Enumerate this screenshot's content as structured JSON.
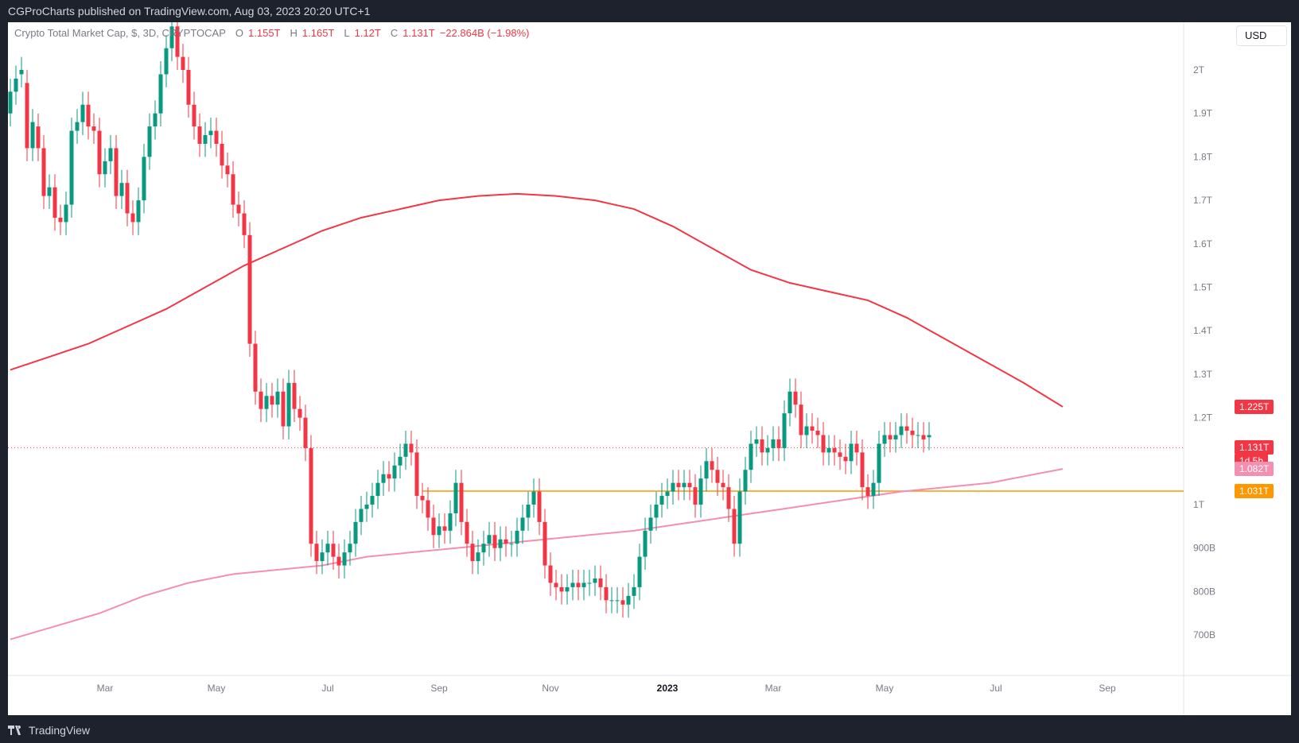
{
  "header": {
    "publisher_text": "CGProCharts published on TradingView.com, Aug 03, 2023 20:20 UTC+1"
  },
  "footer": {
    "brand": "TradingView"
  },
  "legend": {
    "symbol": "Crypto Total Market Cap, $, 3D, CRYPTOCAP",
    "o_label": "O",
    "o_value": "1.155T",
    "h_label": "H",
    "h_value": "1.165T",
    "l_label": "L",
    "l_value": "1.12T",
    "c_label": "C",
    "c_value": "1.131T",
    "change": "−22.864B (−1.98%)"
  },
  "currency_button": "USD",
  "price_tags": [
    {
      "name": "ma-fast-tag",
      "text": "1.225T",
      "value": 1.225,
      "color": "#f23645"
    },
    {
      "name": "last-price-tag",
      "text": "1.131T",
      "value": 1.131,
      "color": "#f23645",
      "subtext": "1d 5h"
    },
    {
      "name": "ma-slow-tag",
      "text": "1.082T",
      "value": 1.082,
      "color": "#f48fb1"
    },
    {
      "name": "horizontal-level-tag",
      "text": "1.031T",
      "value": 1.031,
      "color": "#ff9800"
    }
  ],
  "colors": {
    "up": "#089981",
    "down": "#f23645",
    "ma_fast": "#f23645",
    "ma_slow": "#f48fb1",
    "level": "#ff9800",
    "grid_text": "#787b86",
    "last_price_line": "#f23645"
  },
  "chart_data": {
    "type": "candlestick",
    "title": "Crypto Total Market Cap, $, 3D, CRYPTOCAP",
    "y_scale": "linear",
    "ylim": [
      0.65,
      2.1
    ],
    "y_ticks": [
      {
        "value": 2.0,
        "label": "2T"
      },
      {
        "value": 1.9,
        "label": "1.9T"
      },
      {
        "value": 1.8,
        "label": "1.8T"
      },
      {
        "value": 1.7,
        "label": "1.7T"
      },
      {
        "value": 1.6,
        "label": "1.6T"
      },
      {
        "value": 1.5,
        "label": "1.5T"
      },
      {
        "value": 1.4,
        "label": "1.4T"
      },
      {
        "value": 1.3,
        "label": "1.3T"
      },
      {
        "value": 1.2,
        "label": "1.2T"
      },
      {
        "value": 1.0,
        "label": "1T"
      },
      {
        "value": 0.9,
        "label": "900B"
      },
      {
        "value": 0.8,
        "label": "800B"
      },
      {
        "value": 0.7,
        "label": "700B"
      }
    ],
    "x_ticks": [
      "Mar",
      "May",
      "Jul",
      "Sep",
      "Nov",
      "2023",
      "Mar",
      "May",
      "Jul",
      "Sep"
    ],
    "x_tick_index": [
      17,
      37,
      57,
      77,
      97,
      118,
      137,
      157,
      177,
      197
    ],
    "candles_close": [
      1.95,
      1.98,
      2.0,
      1.82,
      1.88,
      1.82,
      1.71,
      1.73,
      1.66,
      1.65,
      1.69,
      1.86,
      1.88,
      1.92,
      1.87,
      1.86,
      1.76,
      1.79,
      1.82,
      1.71,
      1.74,
      1.67,
      1.65,
      1.7,
      1.8,
      1.87,
      1.9,
      1.99,
      2.05,
      2.1,
      2.03,
      2.0,
      1.92,
      1.87,
      1.83,
      1.85,
      1.86,
      1.83,
      1.78,
      1.76,
      1.69,
      1.67,
      1.62,
      1.37,
      1.26,
      1.22,
      1.25,
      1.23,
      1.26,
      1.18,
      1.28,
      1.22,
      1.2,
      1.13,
      0.91,
      0.87,
      0.89,
      0.91,
      0.88,
      0.86,
      0.89,
      0.91,
      0.96,
      0.99,
      1.0,
      1.02,
      1.05,
      1.07,
      1.06,
      1.09,
      1.11,
      1.14,
      1.12,
      1.02,
      1.01,
      0.97,
      0.93,
      0.95,
      0.94,
      0.98,
      1.05,
      0.96,
      0.91,
      0.87,
      0.89,
      0.91,
      0.93,
      0.9,
      0.92,
      0.91,
      0.91,
      0.94,
      0.97,
      1.0,
      1.03,
      0.96,
      0.86,
      0.82,
      0.81,
      0.8,
      0.81,
      0.82,
      0.81,
      0.82,
      0.82,
      0.83,
      0.81,
      0.78,
      0.78,
      0.78,
      0.77,
      0.79,
      0.81,
      0.88,
      0.94,
      0.97,
      1.0,
      1.02,
      1.03,
      1.05,
      1.04,
      1.05,
      1.04,
      1.0,
      1.06,
      1.1,
      1.08,
      1.05,
      1.04,
      0.99,
      0.91,
      1.03,
      1.08,
      1.14,
      1.15,
      1.12,
      1.13,
      1.15,
      1.13,
      1.21,
      1.26,
      1.23,
      1.16,
      1.18,
      1.17,
      1.16,
      1.12,
      1.13,
      1.12,
      1.11,
      1.1,
      1.14,
      1.12,
      1.04,
      1.02,
      1.05,
      1.14,
      1.16,
      1.15,
      1.16,
      1.18,
      1.17,
      1.16,
      1.16,
      1.15,
      1.16,
      1.13
    ],
    "candles_open": [
      1.9,
      1.95,
      1.99,
      1.97,
      1.82,
      1.87,
      1.82,
      1.71,
      1.73,
      1.66,
      1.65,
      1.69,
      1.86,
      1.88,
      1.92,
      1.87,
      1.86,
      1.76,
      1.79,
      1.82,
      1.71,
      1.74,
      1.67,
      1.65,
      1.7,
      1.8,
      1.87,
      1.9,
      1.99,
      2.05,
      2.1,
      2.03,
      2.0,
      1.92,
      1.87,
      1.83,
      1.85,
      1.86,
      1.83,
      1.78,
      1.76,
      1.69,
      1.67,
      1.62,
      1.37,
      1.26,
      1.22,
      1.25,
      1.23,
      1.26,
      1.18,
      1.28,
      1.22,
      1.2,
      1.13,
      0.91,
      0.87,
      0.89,
      0.91,
      0.88,
      0.86,
      0.89,
      0.91,
      0.96,
      0.99,
      1.0,
      1.02,
      1.05,
      1.07,
      1.06,
      1.09,
      1.11,
      1.14,
      1.12,
      1.02,
      1.01,
      0.97,
      0.93,
      0.95,
      0.94,
      0.98,
      1.05,
      0.96,
      0.91,
      0.87,
      0.89,
      0.91,
      0.93,
      0.9,
      0.92,
      0.91,
      0.91,
      0.94,
      0.97,
      1.0,
      1.03,
      0.96,
      0.86,
      0.82,
      0.81,
      0.8,
      0.81,
      0.82,
      0.81,
      0.82,
      0.82,
      0.83,
      0.81,
      0.78,
      0.78,
      0.78,
      0.77,
      0.79,
      0.81,
      0.88,
      0.94,
      0.97,
      1.0,
      1.02,
      1.03,
      1.05,
      1.04,
      1.05,
      1.04,
      1.0,
      1.06,
      1.1,
      1.08,
      1.05,
      1.04,
      0.99,
      0.91,
      1.03,
      1.08,
      1.14,
      1.15,
      1.12,
      1.13,
      1.15,
      1.13,
      1.21,
      1.26,
      1.23,
      1.16,
      1.18,
      1.17,
      1.16,
      1.12,
      1.13,
      1.12,
      1.11,
      1.1,
      1.14,
      1.12,
      1.04,
      1.02,
      1.05,
      1.14,
      1.16,
      1.15,
      1.16,
      1.18,
      1.17,
      1.16,
      1.16,
      1.155
    ],
    "ma_fast_series": [
      1.31,
      1.34,
      1.37,
      1.41,
      1.45,
      1.5,
      1.55,
      1.59,
      1.63,
      1.66,
      1.68,
      1.7,
      1.71,
      1.715,
      1.71,
      1.7,
      1.68,
      1.64,
      1.59,
      1.54,
      1.51,
      1.49,
      1.47,
      1.43,
      1.38,
      1.33,
      1.28,
      1.225
    ],
    "ma_fast_x": [
      0,
      7,
      14,
      21,
      28,
      35,
      42,
      49,
      56,
      63,
      70,
      77,
      84,
      91,
      98,
      105,
      112,
      119,
      126,
      133,
      140,
      147,
      154,
      161,
      168,
      175,
      182,
      189
    ],
    "ma_slow_series": [
      0.69,
      0.72,
      0.75,
      0.79,
      0.82,
      0.84,
      0.85,
      0.86,
      0.88,
      0.89,
      0.9,
      0.91,
      0.92,
      0.93,
      0.94,
      0.955,
      0.97,
      0.985,
      1.0,
      1.015,
      1.03,
      1.04,
      1.05,
      1.07,
      1.082
    ],
    "ma_slow_x": [
      0,
      8,
      16,
      24,
      32,
      40,
      48,
      56,
      64,
      72,
      80,
      88,
      96,
      104,
      112,
      120,
      128,
      136,
      144,
      152,
      160,
      168,
      176,
      184,
      189
    ],
    "horizontal_level": 1.031,
    "horizontal_level_start_index": 74,
    "last_price": 1.131
  }
}
